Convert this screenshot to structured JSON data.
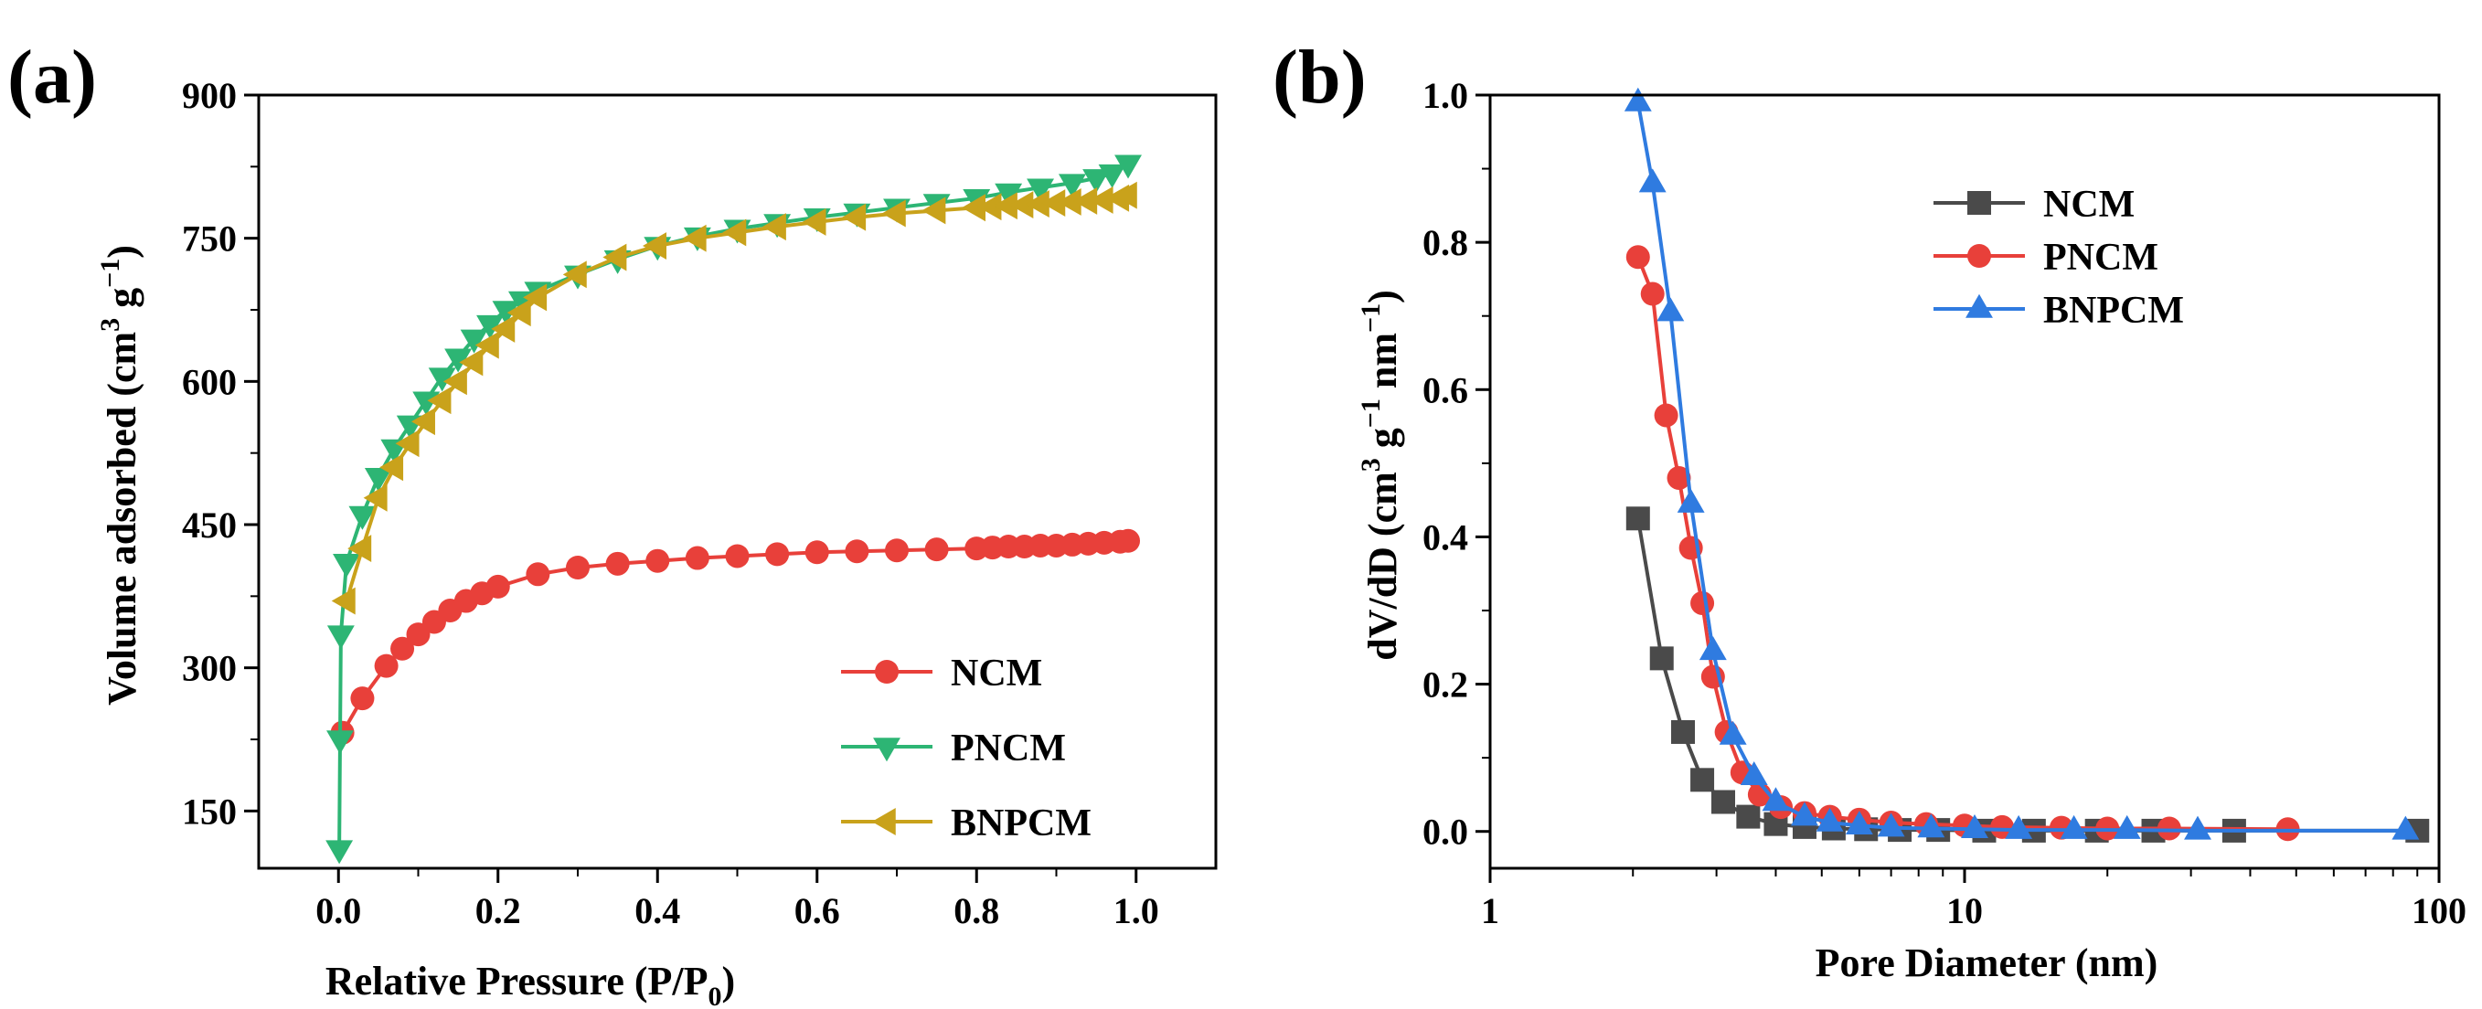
{
  "chart_data": [
    {
      "panel_label": "(a)",
      "type": "line",
      "xlabel": "Relative Pressure (P/P",
      "xlabel_sub": "0",
      "xlabel_end": ")",
      "ylabel": "Volume adsorbed (cm",
      "ylabel_sup1": "3",
      "ylabel_mid": " g",
      "ylabel_sup2": "−1",
      "ylabel_end": ")",
      "xlim": [
        -0.1,
        1.1
      ],
      "ylim": [
        90,
        900
      ],
      "xticks": [
        0.0,
        0.2,
        0.4,
        0.6,
        0.8,
        1.0
      ],
      "xtick_labels": [
        "0.0",
        "0.2",
        "0.4",
        "0.6",
        "0.8",
        "1.0"
      ],
      "yticks": [
        150,
        300,
        450,
        600,
        750,
        900
      ],
      "ytick_labels": [
        "150",
        "300",
        "450",
        "600",
        "750",
        "900"
      ],
      "legend_position": "bottom-right",
      "series": [
        {
          "name": "NCM",
          "color": "#e8403a",
          "marker": "circle",
          "x": [
            0.005,
            0.03,
            0.06,
            0.08,
            0.1,
            0.12,
            0.14,
            0.16,
            0.18,
            0.2,
            0.25,
            0.3,
            0.35,
            0.4,
            0.45,
            0.5,
            0.55,
            0.6,
            0.65,
            0.7,
            0.75,
            0.8,
            0.82,
            0.84,
            0.86,
            0.88,
            0.9,
            0.92,
            0.94,
            0.96,
            0.98,
            0.99
          ],
          "y": [
            232,
            268,
            302,
            320,
            335,
            348,
            360,
            370,
            378,
            385,
            398,
            405,
            409,
            412,
            415,
            417,
            419,
            421,
            422,
            423,
            424,
            425,
            426,
            427,
            427,
            428,
            428,
            429,
            430,
            431,
            432,
            433
          ]
        },
        {
          "name": "PNCM",
          "color": "#2db574",
          "marker": "triangle-down",
          "x": [
            0.001,
            0.002,
            0.003,
            0.01,
            0.03,
            0.05,
            0.07,
            0.09,
            0.11,
            0.13,
            0.15,
            0.17,
            0.19,
            0.21,
            0.23,
            0.25,
            0.3,
            0.35,
            0.4,
            0.45,
            0.5,
            0.55,
            0.6,
            0.65,
            0.7,
            0.75,
            0.8,
            0.84,
            0.88,
            0.92,
            0.95,
            0.97,
            0.99
          ],
          "y": [
            110,
            225,
            335,
            410,
            460,
            500,
            530,
            555,
            580,
            605,
            625,
            645,
            660,
            675,
            685,
            695,
            712,
            728,
            742,
            752,
            760,
            766,
            772,
            777,
            782,
            787,
            792,
            798,
            803,
            808,
            813,
            818,
            828
          ]
        },
        {
          "name": "BNPCM",
          "color": "#c9a21b",
          "marker": "triangle-left",
          "x": [
            0.01,
            0.03,
            0.05,
            0.07,
            0.09,
            0.11,
            0.13,
            0.15,
            0.17,
            0.19,
            0.21,
            0.23,
            0.25,
            0.3,
            0.35,
            0.4,
            0.45,
            0.5,
            0.55,
            0.6,
            0.65,
            0.7,
            0.75,
            0.8,
            0.82,
            0.84,
            0.86,
            0.88,
            0.9,
            0.92,
            0.94,
            0.96,
            0.98,
            0.99
          ],
          "y": [
            370,
            425,
            478,
            510,
            535,
            558,
            580,
            600,
            620,
            638,
            655,
            672,
            688,
            712,
            730,
            742,
            750,
            756,
            762,
            767,
            772,
            776,
            779,
            782,
            783,
            784,
            785,
            786,
            787,
            788,
            789,
            790,
            792,
            795
          ]
        }
      ]
    },
    {
      "panel_label": "(b)",
      "type": "line",
      "xscale": "log",
      "xlabel": "Pore Diameter (nm)",
      "ylabel": "dV/dD (cm",
      "ylabel_sup1": "3",
      "ylabel_mid": " g",
      "ylabel_sup2": "−1",
      "ylabel_mid2": " nm",
      "ylabel_sup3": "−1",
      "ylabel_end": ")",
      "xlim": [
        1,
        100
      ],
      "ylim": [
        -0.05,
        1.0
      ],
      "xticks": [
        1,
        10,
        100
      ],
      "xtick_labels": [
        "1",
        "10",
        "100"
      ],
      "yticks": [
        0.0,
        0.2,
        0.4,
        0.6,
        0.8,
        1.0
      ],
      "ytick_labels": [
        "0.0",
        "0.2",
        "0.4",
        "0.6",
        "0.8",
        "1.0"
      ],
      "legend_position": "top-right",
      "series": [
        {
          "name": "NCM",
          "color": "#4a4a4a",
          "marker": "square",
          "x": [
            2.05,
            2.3,
            2.55,
            2.8,
            3.1,
            3.5,
            4.0,
            4.6,
            5.3,
            6.2,
            7.3,
            8.8,
            11.0,
            14.0,
            19.0,
            25.0,
            37.0,
            90.0
          ],
          "y": [
            0.425,
            0.235,
            0.135,
            0.07,
            0.04,
            0.02,
            0.01,
            0.006,
            0.004,
            0.003,
            0.002,
            0.002,
            0.001,
            0.001,
            0.001,
            0.001,
            0.001,
            0.001
          ]
        },
        {
          "name": "PNCM",
          "color": "#e8403a",
          "marker": "circle",
          "x": [
            2.05,
            2.2,
            2.35,
            2.5,
            2.65,
            2.8,
            2.95,
            3.15,
            3.4,
            3.7,
            4.1,
            4.6,
            5.2,
            6.0,
            7.0,
            8.3,
            10.0,
            12.0,
            16.0,
            20.0,
            27.0,
            48.0
          ],
          "y": [
            0.78,
            0.73,
            0.565,
            0.48,
            0.385,
            0.31,
            0.21,
            0.135,
            0.08,
            0.05,
            0.033,
            0.025,
            0.02,
            0.016,
            0.012,
            0.01,
            0.008,
            0.006,
            0.005,
            0.004,
            0.004,
            0.003
          ]
        },
        {
          "name": "BNPCM",
          "color": "#2f7be0",
          "marker": "triangle-up",
          "x": [
            2.05,
            2.2,
            2.4,
            2.65,
            2.95,
            3.25,
            3.6,
            4.0,
            4.6,
            5.2,
            6.0,
            7.0,
            8.5,
            10.5,
            13.0,
            17.0,
            22.0,
            31.0,
            85.0
          ],
          "y": [
            0.99,
            0.88,
            0.705,
            0.445,
            0.245,
            0.13,
            0.075,
            0.04,
            0.02,
            0.012,
            0.008,
            0.005,
            0.004,
            0.003,
            0.002,
            0.002,
            0.002,
            0.001,
            0.001
          ]
        }
      ]
    }
  ]
}
